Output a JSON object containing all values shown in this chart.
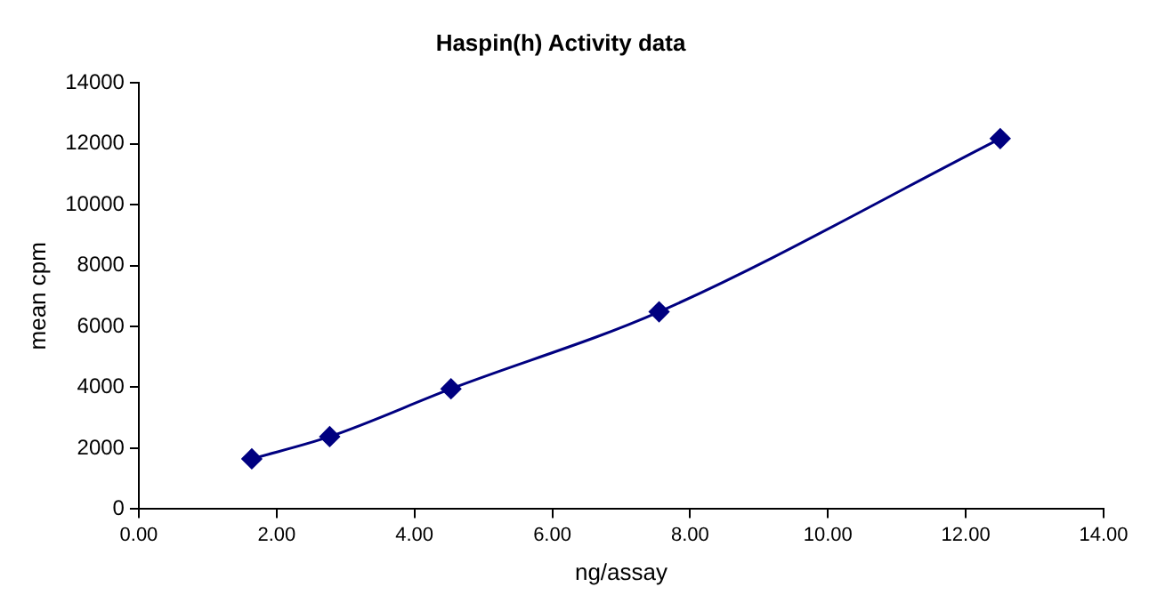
{
  "chart_data": {
    "type": "line",
    "title": "Haspin(h) Activity data",
    "xlabel": "ng/assay",
    "ylabel": "mean cpm",
    "x": [
      1.64,
      2.77,
      4.53,
      7.55,
      12.5
    ],
    "series": [
      {
        "color": "#000080",
        "values": [
          1650,
          2380,
          3950,
          6480,
          12170
        ]
      }
    ],
    "xlim": [
      0,
      14
    ],
    "xticks": [
      {
        "value": 0,
        "label": "0.00"
      },
      {
        "value": 2,
        "label": "2.00"
      },
      {
        "value": 4,
        "label": "4.00"
      },
      {
        "value": 6,
        "label": "6.00"
      },
      {
        "value": 8,
        "label": "8.00"
      },
      {
        "value": 10,
        "label": "10.00"
      },
      {
        "value": 12,
        "label": "12.00"
      },
      {
        "value": 14,
        "label": "14.00"
      }
    ],
    "ylim": [
      0,
      14000
    ],
    "yticks": [
      0,
      2000,
      4000,
      6000,
      8000,
      10000,
      12000,
      14000
    ],
    "grid": false,
    "legend": false,
    "marker": "diamond",
    "line_style": "solid"
  }
}
